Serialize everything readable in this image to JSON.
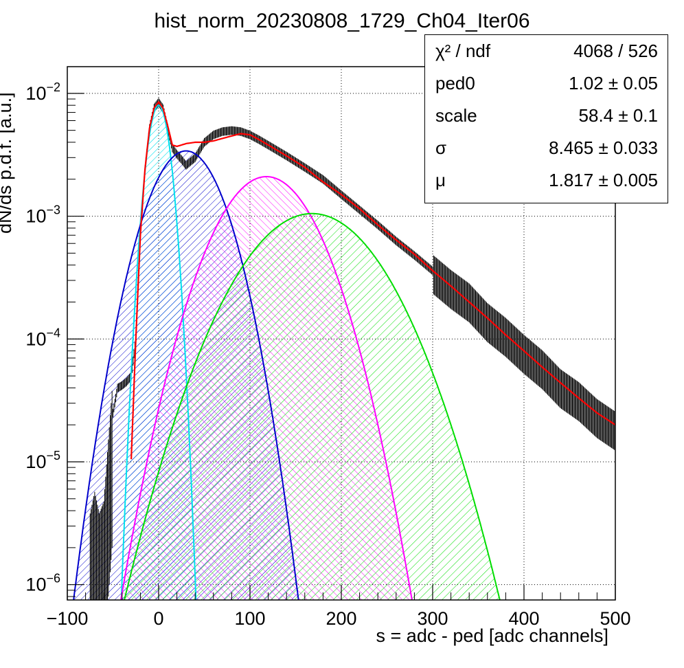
{
  "colors": {
    "data": "#000000",
    "fit_total": "#ff0000",
    "pedestal": "#00e0ee",
    "pe1": "#0000cc",
    "pe2": "#ff00ff",
    "pe3": "#00dd00",
    "grid": "#000000"
  },
  "chart_data": {
    "type": "line",
    "title": "hist_norm_20230808_1729_Ch04_Iter06",
    "xlabel": "s = adc - ped [adc channels]",
    "ylabel": "dN/ds p.d.f. [a.u.]",
    "xlim": [
      -100,
      500
    ],
    "ylim": [
      7.5e-07,
      0.0165
    ],
    "yscale": "log",
    "grid": true,
    "x_ticks": [
      "−100",
      "0",
      "100",
      "200",
      "300",
      "400",
      "500"
    ],
    "y_ticks": [
      {
        "base": "10",
        "exp": "−2",
        "value": 0.01
      },
      {
        "base": "10",
        "exp": "−3",
        "value": 0.001
      },
      {
        "base": "10",
        "exp": "−4",
        "value": 0.0001
      },
      {
        "base": "10",
        "exp": "−5",
        "value": 1e-05
      },
      {
        "base": "10",
        "exp": "−6",
        "value": 1e-06
      }
    ],
    "components": [
      {
        "color": "#00e0ee",
        "hatch": "cyan",
        "center": 0,
        "peak": 0.008,
        "sigma": 9.5
      },
      {
        "color": "#0000cc",
        "hatch": "blue",
        "center": 30,
        "peak": 0.0034,
        "sigma": 30
      },
      {
        "color": "#ff00ff",
        "hatch": "magenta",
        "center": 118,
        "peak": 0.0021,
        "sigma": 40
      },
      {
        "color": "#00dd00",
        "hatch": "green",
        "center": 168,
        "peak": 0.00105,
        "sigma": 54
      }
    ],
    "total_fit": {
      "x": [
        -30,
        -25,
        -20,
        -15,
        -10,
        -5,
        0,
        5,
        10,
        15,
        20,
        30,
        40,
        50,
        60,
        70,
        80,
        90,
        100,
        110,
        120,
        140,
        160,
        180,
        200,
        220,
        240,
        260,
        280,
        300,
        320,
        340,
        360,
        380,
        400,
        420,
        440,
        460,
        480,
        500
      ],
      "y": [
        1.05e-05,
        0.0001,
        0.0007,
        0.0024,
        0.0052,
        0.0076,
        0.0085,
        0.0075,
        0.0054,
        0.0038,
        0.0037,
        0.0039,
        0.004,
        0.004,
        0.0041,
        0.0043,
        0.0045,
        0.0047,
        0.0046,
        0.0042,
        0.0038,
        0.0031,
        0.0025,
        0.0019,
        0.0015,
        0.00115,
        0.00085,
        0.00064,
        0.00049,
        0.00036,
        0.00027,
        0.0002,
        0.000148,
        0.000108,
        8e-05,
        5.9e-05,
        4.4e-05,
        3.3e-05,
        2.5e-05,
        2e-05
      ]
    },
    "data_points": {
      "x": [
        -75,
        -70,
        -65,
        -60,
        -55,
        -50,
        -45,
        -40,
        -35,
        -30,
        -25,
        -20,
        -15,
        -10,
        -5,
        0,
        5,
        10,
        15,
        20,
        25,
        30,
        40,
        50,
        60,
        70,
        80,
        90,
        100,
        110,
        120,
        140,
        160,
        180,
        200,
        220,
        240,
        260,
        280,
        300,
        320,
        340,
        360,
        380,
        400,
        420,
        440,
        460,
        480,
        500
      ],
      "y": [
        2e-06,
        3e-06,
        2e-06,
        2.5e-06,
        8e-06,
        2.5e-05,
        4e-05,
        4.2e-05,
        4.5e-05,
        5e-05,
        0.0001,
        0.0007,
        0.0024,
        0.0052,
        0.0076,
        0.0085,
        0.0075,
        0.0052,
        0.0036,
        0.0032,
        0.0029,
        0.0026,
        0.003,
        0.004,
        0.0046,
        0.0049,
        0.005,
        0.0049,
        0.0046,
        0.0042,
        0.0038,
        0.0031,
        0.0025,
        0.002,
        0.0015,
        0.00113,
        0.00085,
        0.00063,
        0.00048,
        0.00036,
        0.00027,
        0.00021,
        0.000145,
        0.00011,
        8e-05,
        6e-05,
        4.2e-05,
        3.3e-05,
        2.4e-05,
        1.9e-05
      ]
    }
  },
  "stats_box": {
    "rows": [
      {
        "key": "χ² / ndf",
        "value": "4068 / 526"
      },
      {
        "key": "ped0",
        "value": "1.02 ± 0.05"
      },
      {
        "key": "scale",
        "value": "58.4 ± 0.1"
      },
      {
        "key": "σ",
        "value": "8.465 ± 0.033"
      },
      {
        "key": "μ",
        "value": "1.817 ± 0.005"
      }
    ]
  }
}
